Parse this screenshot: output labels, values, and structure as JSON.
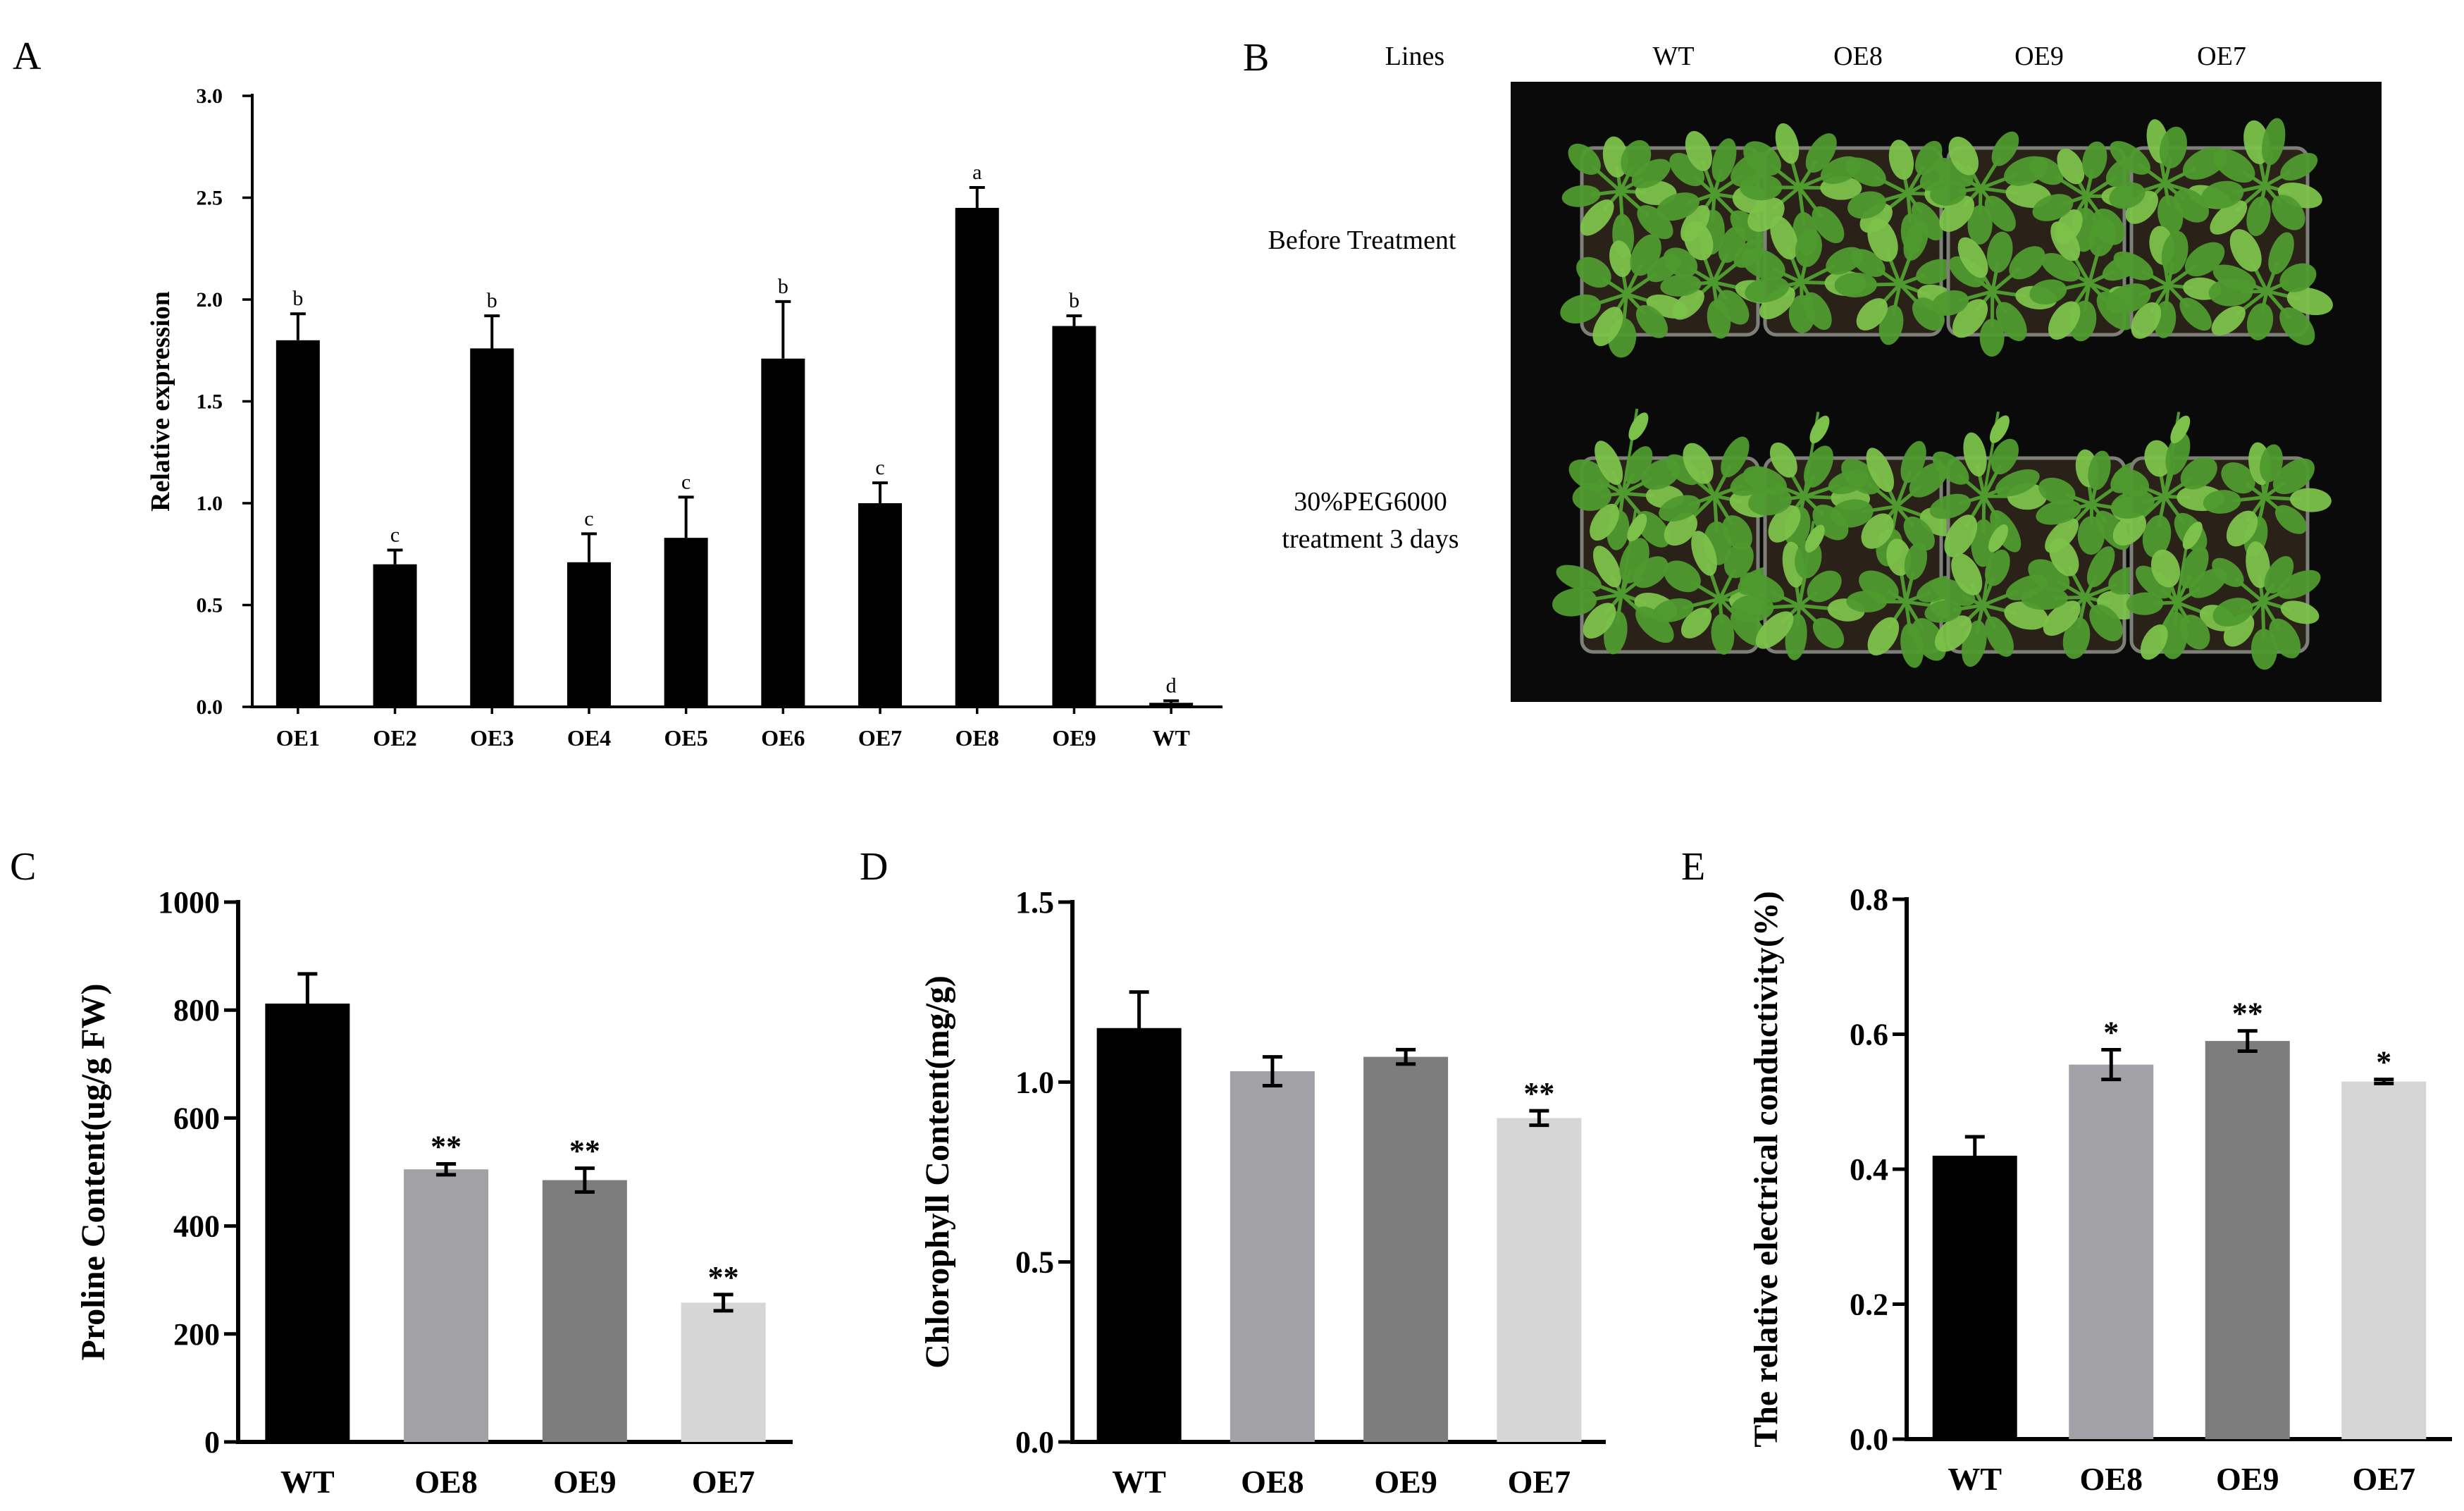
{
  "panels": {
    "A": {
      "letter": "A"
    },
    "B": {
      "letter": "B"
    },
    "C": {
      "letter": "C"
    },
    "D": {
      "letter": "D"
    },
    "E": {
      "letter": "E"
    }
  },
  "photo": {
    "header_lines": "Lines",
    "columns": [
      "WT",
      "OE8",
      "OE9",
      "OE7"
    ],
    "row1": "Before Treatment",
    "row2_line1": "30%PEG6000",
    "row2_line2": "treatment 3 days",
    "colors": {
      "background": "#0a0a0a",
      "leaf": "#4f9a2f",
      "leaf_light": "#7cc24a",
      "soil": "#2a2118",
      "pot": "#7d8078"
    }
  },
  "chart_data": [
    {
      "panel": "A",
      "type": "bar",
      "categories": [
        "OE1",
        "OE2",
        "OE3",
        "OE4",
        "OE5",
        "OE6",
        "OE7",
        "OE8",
        "OE9",
        "WT"
      ],
      "values": [
        1.8,
        0.7,
        1.76,
        0.71,
        0.83,
        1.71,
        1.0,
        2.45,
        1.87,
        0.02
      ],
      "errors": [
        0.13,
        0.07,
        0.16,
        0.14,
        0.2,
        0.28,
        0.1,
        0.1,
        0.05,
        0.01
      ],
      "significance": [
        "b",
        "c",
        "b",
        "c",
        "c",
        "b",
        "c",
        "a",
        "b",
        "d"
      ],
      "ylabel": "Relative expression",
      "ylim": [
        0,
        3.0
      ],
      "yticks": [
        "0.0",
        "0.5",
        "1.0",
        "1.5",
        "2.0",
        "2.5",
        "3.0"
      ],
      "colors": [
        "#000000",
        "#000000",
        "#000000",
        "#000000",
        "#000000",
        "#000000",
        "#000000",
        "#000000",
        "#000000",
        "#000000"
      ]
    },
    {
      "panel": "C",
      "type": "bar",
      "categories": [
        "WT",
        "OE8",
        "OE9",
        "OE7"
      ],
      "values": [
        812,
        505,
        485,
        258
      ],
      "errors": [
        55,
        10,
        22,
        15
      ],
      "significance": [
        "",
        "**",
        "**",
        "**"
      ],
      "ylabel": "Proline Content(ug/g FW)",
      "ylim": [
        0,
        1000
      ],
      "yticks": [
        "0",
        "200",
        "400",
        "600",
        "800",
        "1000"
      ],
      "colors": [
        "#000000",
        "#a2a2a6",
        "#7d7d7d",
        "#d6d6d6"
      ]
    },
    {
      "panel": "D",
      "type": "bar",
      "categories": [
        "WT",
        "OE8",
        "OE9",
        "OE7"
      ],
      "values": [
        1.15,
        1.03,
        1.07,
        0.9
      ],
      "errors": [
        0.1,
        0.04,
        0.02,
        0.02
      ],
      "significance": [
        "",
        "",
        "",
        "**"
      ],
      "ylabel": "Chlorophyll Content(mg/g)",
      "ylim": [
        0,
        1.5
      ],
      "yticks": [
        "0.0",
        "0.5",
        "1.0",
        "1.5"
      ],
      "colors": [
        "#000000",
        "#a2a2a6",
        "#7d7d7d",
        "#d6d6d6"
      ]
    },
    {
      "panel": "E",
      "type": "bar",
      "categories": [
        "WT",
        "OE8",
        "OE9",
        "OE7"
      ],
      "values": [
        0.42,
        0.555,
        0.59,
        0.53
      ],
      "errors": [
        0.028,
        0.022,
        0.015,
        0.003
      ],
      "significance": [
        "",
        "*",
        "**",
        "*"
      ],
      "ylabel": "The relative electrical conductivity(%)",
      "ylim": [
        0,
        0.8
      ],
      "yticks": [
        "0.0",
        "0.2",
        "0.4",
        "0.6",
        "0.8"
      ],
      "colors": [
        "#000000",
        "#a2a2a6",
        "#7d7d7d",
        "#d6d6d6"
      ]
    }
  ]
}
